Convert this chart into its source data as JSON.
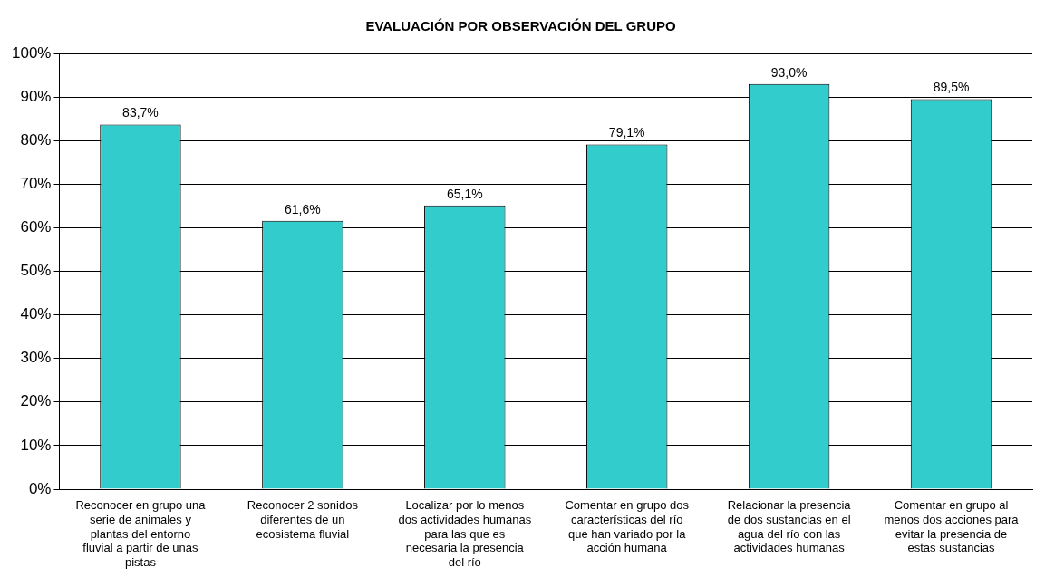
{
  "chart_data": {
    "type": "bar",
    "title": "EVALUACIÓN POR OBSERVACIÓN DEL GRUPO",
    "categories": [
      "Reconocer en grupo una serie de animales y plantas del entorno fluvial a partir de unas pistas",
      "Reconocer 2 sonidos diferentes de un ecosistema fluvial",
      "Localizar por lo menos dos actividades humanas para las que es necesaria la presencia del río",
      "Comentar en grupo dos características del río que han variado por la acción humana",
      "Relacionar la presencia de dos sustancias en el agua del río con las actividades humanas",
      "Comentar en grupo al menos dos acciones para evitar la presencia de estas sustancias"
    ],
    "values": [
      83.7,
      61.6,
      65.1,
      79.1,
      93.0,
      89.5
    ],
    "value_labels": [
      "83,7%",
      "61,6%",
      "65,1%",
      "79,1%",
      "93,0%",
      "89,5%"
    ],
    "color": "#33cccc",
    "ylim": [
      0,
      100
    ],
    "yticks": [
      {
        "value": 0,
        "label": "0%"
      },
      {
        "value": 10,
        "label": "10%"
      },
      {
        "value": 20,
        "label": "20%"
      },
      {
        "value": 30,
        "label": "30%"
      },
      {
        "value": 40,
        "label": "40%"
      },
      {
        "value": 50,
        "label": "50%"
      },
      {
        "value": 60,
        "label": "60%"
      },
      {
        "value": 70,
        "label": "70%"
      },
      {
        "value": 80,
        "label": "80%"
      },
      {
        "value": 90,
        "label": "90%"
      },
      {
        "value": 100,
        "label": "100%"
      }
    ],
    "grid": "y",
    "legend": false
  }
}
